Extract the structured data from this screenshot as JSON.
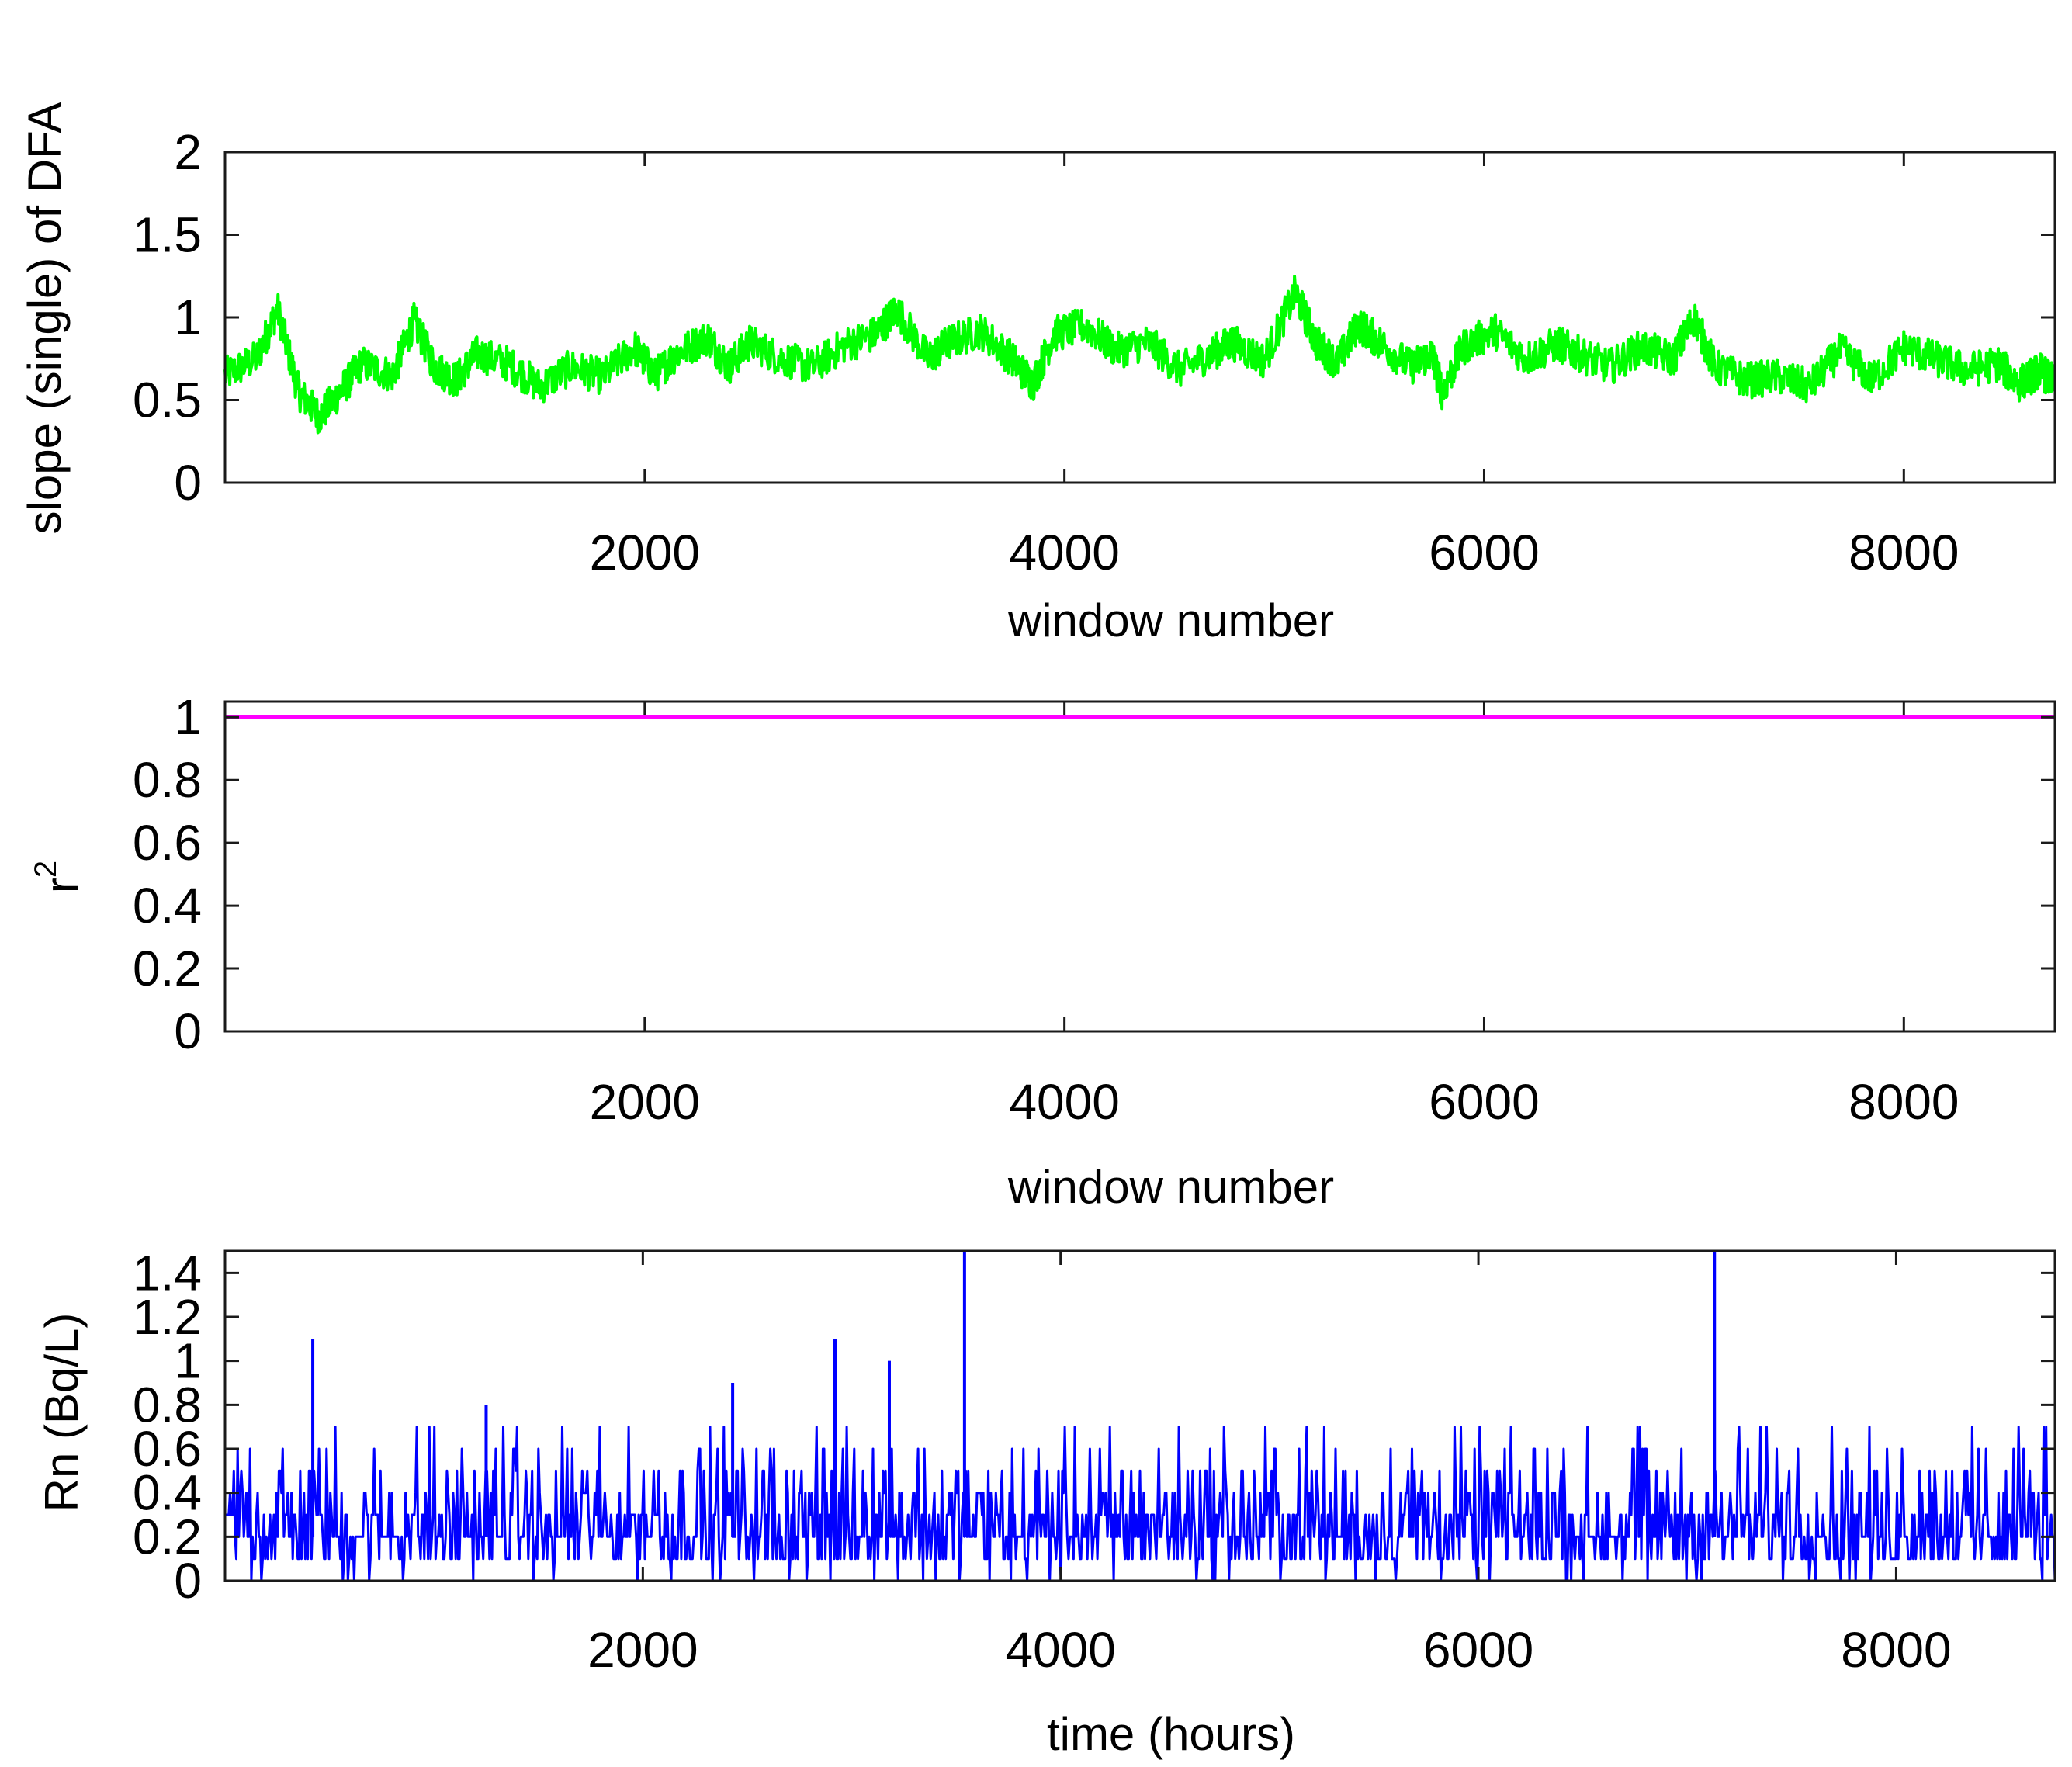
{
  "chart_data": [
    {
      "type": "line",
      "xlabel": "window number",
      "ylabel": "slope (single) of DFA",
      "xlim": [
        0,
        8720
      ],
      "ylim": [
        0,
        2
      ],
      "xticks": [
        2000,
        4000,
        6000,
        8000
      ],
      "yticks": [
        0,
        0.5,
        1,
        1.5,
        2
      ],
      "ytick_labels": [
        "0",
        "0.5",
        "1",
        "1.5",
        "2"
      ],
      "grid": false,
      "series": [
        {
          "color": "#00ff00",
          "x": [
            0,
            150,
            250,
            350,
            450,
            550,
            650,
            800,
            900,
            1000,
            1100,
            1200,
            1350,
            1500,
            1650,
            1800,
            1950,
            2050,
            2150,
            2300,
            2400,
            2500,
            2650,
            2800,
            2950,
            3100,
            3200,
            3350,
            3450,
            3600,
            3750,
            3850,
            3950,
            4100,
            4250,
            4400,
            4550,
            4700,
            4800,
            4950,
            5100,
            5200,
            5300,
            5400,
            5500,
            5650,
            5750,
            5800,
            5900,
            6050,
            6200,
            6350,
            6450,
            6600,
            6750,
            6900,
            7000,
            7100,
            7250,
            7400,
            7550,
            7700,
            7850,
            8000,
            8150,
            8300,
            8450,
            8550,
            8650,
            8720
          ],
          "y": [
            0.65,
            0.75,
            1.05,
            0.55,
            0.4,
            0.55,
            0.72,
            0.65,
            0.98,
            0.7,
            0.62,
            0.78,
            0.72,
            0.58,
            0.7,
            0.64,
            0.82,
            0.65,
            0.78,
            0.88,
            0.7,
            0.85,
            0.75,
            0.7,
            0.83,
            0.9,
            1.05,
            0.75,
            0.85,
            0.92,
            0.75,
            0.6,
            0.9,
            0.95,
            0.8,
            0.85,
            0.68,
            0.78,
            0.85,
            0.74,
            1.15,
            0.85,
            0.72,
            0.96,
            0.85,
            0.7,
            0.78,
            0.55,
            0.82,
            0.92,
            0.75,
            0.84,
            0.78,
            0.7,
            0.82,
            0.75,
            1.0,
            0.7,
            0.62,
            0.64,
            0.58,
            0.8,
            0.62,
            0.82,
            0.75,
            0.68,
            0.72,
            0.6,
            0.68,
            0.6
          ]
        }
      ]
    },
    {
      "type": "line",
      "xlabel": "window number",
      "ylabel": "r",
      "ylabel_superscript": "2",
      "xlim": [
        0,
        8720
      ],
      "ylim": [
        0,
        1.05
      ],
      "xticks": [
        2000,
        4000,
        6000,
        8000
      ],
      "yticks": [
        0,
        0.2,
        0.4,
        0.6,
        0.8,
        1
      ],
      "ytick_labels": [
        "0",
        "0.2",
        "0.4",
        "0.6",
        "0.8",
        "1"
      ],
      "grid": false,
      "series": [
        {
          "color": "#ff00ff",
          "x": [
            0,
            8720
          ],
          "y": [
            1.0,
            1.0
          ]
        }
      ]
    },
    {
      "type": "line",
      "xlabel": "time (hours)",
      "ylabel": "Rn (Bq/L)",
      "xlim": [
        0,
        8760
      ],
      "ylim": [
        0,
        1.5
      ],
      "xticks": [
        2000,
        4000,
        6000,
        8000
      ],
      "yticks": [
        0,
        0.2,
        0.4,
        0.6,
        0.8,
        1,
        1.2,
        1.4
      ],
      "ytick_labels": [
        "0",
        "0.2",
        "0.4",
        "0.6",
        "0.8",
        "1",
        "1.2",
        "1.4"
      ],
      "grid": false,
      "series": [
        {
          "color": "#0000ff",
          "spikes": [
            {
              "x": 420,
              "y": 1.1
            },
            {
              "x": 2920,
              "y": 1.1
            },
            {
              "x": 3180,
              "y": 1.0
            },
            {
              "x": 3540,
              "y": 1.5
            },
            {
              "x": 7130,
              "y": 1.5
            },
            {
              "x": 2430,
              "y": 0.9
            },
            {
              "x": 1250,
              "y": 0.8
            }
          ],
          "typical_range": [
            0.0,
            0.6
          ]
        }
      ]
    }
  ]
}
